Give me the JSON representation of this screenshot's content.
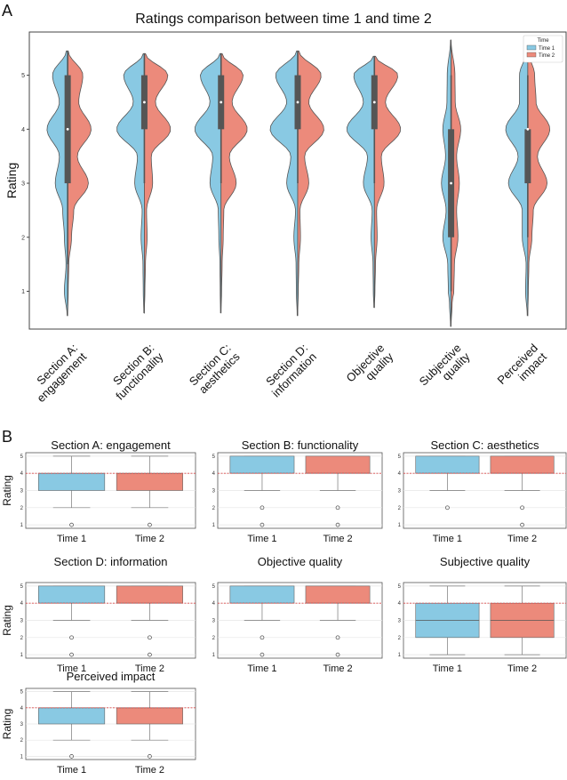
{
  "panels": {
    "a_label": "A",
    "b_label": "B"
  },
  "colors": {
    "time1": "#89c9e3",
    "time2": "#ec8a7b",
    "median_line": "#d94a4a",
    "axis": "#333333",
    "grid": "#e6e6e6",
    "box_dark": "#555555"
  },
  "chart_data": [
    {
      "id": "violin",
      "type": "violin",
      "title": "Ratings comparison between time 1 and time 2",
      "xlabel": "",
      "ylabel": "Rating",
      "ylim": [
        0.3,
        5.8
      ],
      "yticks": [
        1,
        2,
        3,
        4,
        5
      ],
      "legend": {
        "title": "Time",
        "position": "top-right",
        "entries": [
          "Time 1",
          "Time 2"
        ]
      },
      "categories": [
        {
          "label": [
            "Section A:",
            "engagement"
          ],
          "range": [
            0.55,
            5.45
          ],
          "q1": 3,
          "median": 4,
          "q3": 5,
          "whisker_low": 1.5,
          "whisker_high": 5.45,
          "density1": [
            [
              0.55,
              0.02
            ],
            [
              1.0,
              0.12
            ],
            [
              1.5,
              0.06
            ],
            [
              2.0,
              0.12
            ],
            [
              2.5,
              0.18
            ],
            [
              3.0,
              0.45
            ],
            [
              3.5,
              0.3
            ],
            [
              4.0,
              0.75
            ],
            [
              4.5,
              0.3
            ],
            [
              5.0,
              0.55
            ],
            [
              5.45,
              0.05
            ]
          ],
          "density2": [
            [
              0.55,
              0.0
            ],
            [
              1.0,
              0.02
            ],
            [
              1.5,
              0.04
            ],
            [
              2.0,
              0.14
            ],
            [
              2.5,
              0.22
            ],
            [
              3.0,
              0.75
            ],
            [
              3.5,
              0.35
            ],
            [
              4.0,
              0.85
            ],
            [
              4.5,
              0.4
            ],
            [
              5.0,
              0.55
            ],
            [
              5.45,
              0.02
            ]
          ]
        },
        {
          "label": [
            "Section B:",
            "functionality"
          ],
          "range": [
            0.6,
            5.4
          ],
          "q1": 4,
          "median": 4.5,
          "q3": 5,
          "whisker_low": 3,
          "whisker_high": 5.4,
          "density1": [
            [
              0.6,
              0.02
            ],
            [
              1.0,
              0.04
            ],
            [
              1.5,
              0.05
            ],
            [
              2.0,
              0.12
            ],
            [
              2.5,
              0.08
            ],
            [
              3.0,
              0.35
            ],
            [
              3.5,
              0.25
            ],
            [
              4.0,
              1.0
            ],
            [
              4.5,
              0.4
            ],
            [
              5.0,
              0.75
            ],
            [
              5.4,
              0.04
            ]
          ],
          "density2": [
            [
              0.6,
              0.0
            ],
            [
              1.0,
              0.02
            ],
            [
              1.5,
              0.04
            ],
            [
              2.0,
              0.1
            ],
            [
              2.5,
              0.08
            ],
            [
              3.0,
              0.3
            ],
            [
              3.5,
              0.25
            ],
            [
              4.0,
              0.95
            ],
            [
              4.5,
              0.4
            ],
            [
              5.0,
              0.85
            ],
            [
              5.4,
              0.04
            ]
          ]
        },
        {
          "label": [
            "Section C:",
            "aesthetics"
          ],
          "range": [
            0.6,
            5.4
          ],
          "q1": 4,
          "median": 4.5,
          "q3": 5,
          "whisker_low": 3,
          "whisker_high": 5.4,
          "density1": [
            [
              0.6,
              0.02
            ],
            [
              1.0,
              0.03
            ],
            [
              1.5,
              0.04
            ],
            [
              2.0,
              0.08
            ],
            [
              2.5,
              0.1
            ],
            [
              3.0,
              0.4
            ],
            [
              3.5,
              0.3
            ],
            [
              4.0,
              0.95
            ],
            [
              4.5,
              0.4
            ],
            [
              5.0,
              0.75
            ],
            [
              5.4,
              0.04
            ]
          ],
          "density2": [
            [
              0.6,
              0.0
            ],
            [
              1.0,
              0.02
            ],
            [
              1.5,
              0.04
            ],
            [
              2.0,
              0.08
            ],
            [
              2.5,
              0.1
            ],
            [
              3.0,
              0.55
            ],
            [
              3.5,
              0.3
            ],
            [
              4.0,
              0.95
            ],
            [
              4.5,
              0.4
            ],
            [
              5.0,
              0.8
            ],
            [
              5.4,
              0.04
            ]
          ]
        },
        {
          "label": [
            "Section D:",
            "information"
          ],
          "range": [
            0.55,
            5.45
          ],
          "q1": 4,
          "median": 4.5,
          "q3": 5,
          "whisker_low": 3,
          "whisker_high": 5.45,
          "density1": [
            [
              0.55,
              0.02
            ],
            [
              1.0,
              0.05
            ],
            [
              1.5,
              0.06
            ],
            [
              2.0,
              0.14
            ],
            [
              2.5,
              0.08
            ],
            [
              3.0,
              0.4
            ],
            [
              3.5,
              0.25
            ],
            [
              4.0,
              1.0
            ],
            [
              4.5,
              0.4
            ],
            [
              5.0,
              0.8
            ],
            [
              5.45,
              0.04
            ]
          ],
          "density2": [
            [
              0.55,
              0.0
            ],
            [
              1.0,
              0.02
            ],
            [
              1.5,
              0.04
            ],
            [
              2.0,
              0.1
            ],
            [
              2.5,
              0.08
            ],
            [
              3.0,
              0.4
            ],
            [
              3.5,
              0.25
            ],
            [
              4.0,
              0.95
            ],
            [
              4.5,
              0.4
            ],
            [
              5.0,
              0.85
            ],
            [
              5.45,
              0.04
            ]
          ]
        },
        {
          "label": [
            "Objective",
            "quality"
          ],
          "range": [
            0.7,
            5.35
          ],
          "q1": 4,
          "median": 4.5,
          "q3": 5,
          "whisker_low": 3,
          "whisker_high": 5.35,
          "density1": [
            [
              0.7,
              0.02
            ],
            [
              1.0,
              0.04
            ],
            [
              1.5,
              0.05
            ],
            [
              2.0,
              0.12
            ],
            [
              2.5,
              0.08
            ],
            [
              3.0,
              0.4
            ],
            [
              3.5,
              0.25
            ],
            [
              4.0,
              1.0
            ],
            [
              4.5,
              0.4
            ],
            [
              5.0,
              0.75
            ],
            [
              5.35,
              0.04
            ]
          ],
          "density2": [
            [
              0.7,
              0.0
            ],
            [
              1.0,
              0.02
            ],
            [
              1.5,
              0.04
            ],
            [
              2.0,
              0.1
            ],
            [
              2.5,
              0.08
            ],
            [
              3.0,
              0.35
            ],
            [
              3.5,
              0.25
            ],
            [
              4.0,
              0.95
            ],
            [
              4.5,
              0.4
            ],
            [
              5.0,
              0.85
            ],
            [
              5.35,
              0.04
            ]
          ]
        },
        {
          "label": [
            "Subjective",
            "quality"
          ],
          "range": [
            0.35,
            5.65
          ],
          "q1": 2,
          "median": 3,
          "q3": 4,
          "whisker_low": 1,
          "whisker_high": 5,
          "density1": [
            [
              0.35,
              0.02
            ],
            [
              0.8,
              0.06
            ],
            [
              1.0,
              0.1
            ],
            [
              1.5,
              0.12
            ],
            [
              2.0,
              0.3
            ],
            [
              2.5,
              0.18
            ],
            [
              3.0,
              0.35
            ],
            [
              3.5,
              0.2
            ],
            [
              4.0,
              0.3
            ],
            [
              4.5,
              0.15
            ],
            [
              5.0,
              0.14
            ],
            [
              5.65,
              0.02
            ]
          ],
          "density2": [
            [
              0.35,
              0.0
            ],
            [
              0.8,
              0.04
            ],
            [
              1.0,
              0.1
            ],
            [
              1.5,
              0.12
            ],
            [
              2.0,
              0.25
            ],
            [
              2.5,
              0.2
            ],
            [
              3.0,
              0.3
            ],
            [
              3.5,
              0.2
            ],
            [
              4.0,
              0.35
            ],
            [
              4.5,
              0.15
            ],
            [
              5.0,
              0.14
            ],
            [
              5.65,
              0.0
            ]
          ]
        },
        {
          "label": [
            "Perceived",
            "impact"
          ],
          "range": [
            0.55,
            5.45
          ],
          "q1": 3,
          "median": 4,
          "q3": 4,
          "whisker_low": 2,
          "whisker_high": 5,
          "density1": [
            [
              0.55,
              0.02
            ],
            [
              1.0,
              0.08
            ],
            [
              1.5,
              0.06
            ],
            [
              2.0,
              0.2
            ],
            [
              2.5,
              0.2
            ],
            [
              3.0,
              0.7
            ],
            [
              3.5,
              0.35
            ],
            [
              4.0,
              0.8
            ],
            [
              4.5,
              0.3
            ],
            [
              5.0,
              0.3
            ],
            [
              5.45,
              0.04
            ]
          ],
          "density2": [
            [
              0.55,
              0.0
            ],
            [
              1.0,
              0.02
            ],
            [
              1.5,
              0.04
            ],
            [
              2.0,
              0.15
            ],
            [
              2.5,
              0.2
            ],
            [
              3.0,
              0.7
            ],
            [
              3.5,
              0.35
            ],
            [
              4.0,
              0.8
            ],
            [
              4.5,
              0.3
            ],
            [
              5.0,
              0.25
            ],
            [
              5.45,
              0.02
            ]
          ]
        }
      ]
    },
    {
      "id": "boxplots",
      "type": "box",
      "ylabel": "Rating",
      "ylim": [
        0.8,
        5.2
      ],
      "yticks": [
        1,
        2,
        3,
        4,
        5
      ],
      "categories": [
        "Time 1",
        "Time 2"
      ],
      "reference_line": 4,
      "subplots": [
        {
          "title": "Section A: engagement",
          "boxes": [
            {
              "q1": 3,
              "median": 4,
              "q3": 4,
              "whisker_low": 2,
              "whisker_high": 5,
              "outliers": [
                1
              ]
            },
            {
              "q1": 3,
              "median": 4,
              "q3": 4,
              "whisker_low": 2,
              "whisker_high": 5,
              "outliers": [
                1
              ]
            }
          ]
        },
        {
          "title": "Section B: functionality",
          "boxes": [
            {
              "q1": 4,
              "median": 4,
              "q3": 5,
              "whisker_low": 3,
              "whisker_high": 5,
              "outliers": [
                2,
                1
              ]
            },
            {
              "q1": 4,
              "median": 4,
              "q3": 5,
              "whisker_low": 3,
              "whisker_high": 5,
              "outliers": [
                2,
                1
              ]
            }
          ]
        },
        {
          "title": "Section C: aesthetics",
          "boxes": [
            {
              "q1": 4,
              "median": 4,
              "q3": 5,
              "whisker_low": 3,
              "whisker_high": 5,
              "outliers": [
                2
              ]
            },
            {
              "q1": 4,
              "median": 4,
              "q3": 5,
              "whisker_low": 3,
              "whisker_high": 5,
              "outliers": [
                2,
                1
              ]
            }
          ]
        },
        {
          "title": "Section D: information",
          "boxes": [
            {
              "q1": 4,
              "median": 4,
              "q3": 5,
              "whisker_low": 3,
              "whisker_high": 5,
              "outliers": [
                2,
                1
              ]
            },
            {
              "q1": 4,
              "median": 4,
              "q3": 5,
              "whisker_low": 3,
              "whisker_high": 5,
              "outliers": [
                2,
                1
              ]
            }
          ]
        },
        {
          "title": "Objective quality",
          "boxes": [
            {
              "q1": 4,
              "median": 4,
              "q3": 5,
              "whisker_low": 3,
              "whisker_high": 5,
              "outliers": [
                2,
                1
              ]
            },
            {
              "q1": 4,
              "median": 4,
              "q3": 5,
              "whisker_low": 3,
              "whisker_high": 5,
              "outliers": [
                2,
                1
              ]
            }
          ]
        },
        {
          "title": "Subjective quality",
          "boxes": [
            {
              "q1": 2,
              "median": 3,
              "q3": 4,
              "whisker_low": 1,
              "whisker_high": 5,
              "outliers": []
            },
            {
              "q1": 2,
              "median": 3,
              "q3": 4,
              "whisker_low": 1,
              "whisker_high": 5,
              "outliers": []
            }
          ]
        },
        {
          "title": "Perceived impact",
          "boxes": [
            {
              "q1": 3,
              "median": 4,
              "q3": 4,
              "whisker_low": 2,
              "whisker_high": 5,
              "outliers": [
                1
              ]
            },
            {
              "q1": 3,
              "median": 4,
              "q3": 4,
              "whisker_low": 2,
              "whisker_high": 5,
              "outliers": [
                1
              ]
            }
          ]
        }
      ]
    }
  ]
}
